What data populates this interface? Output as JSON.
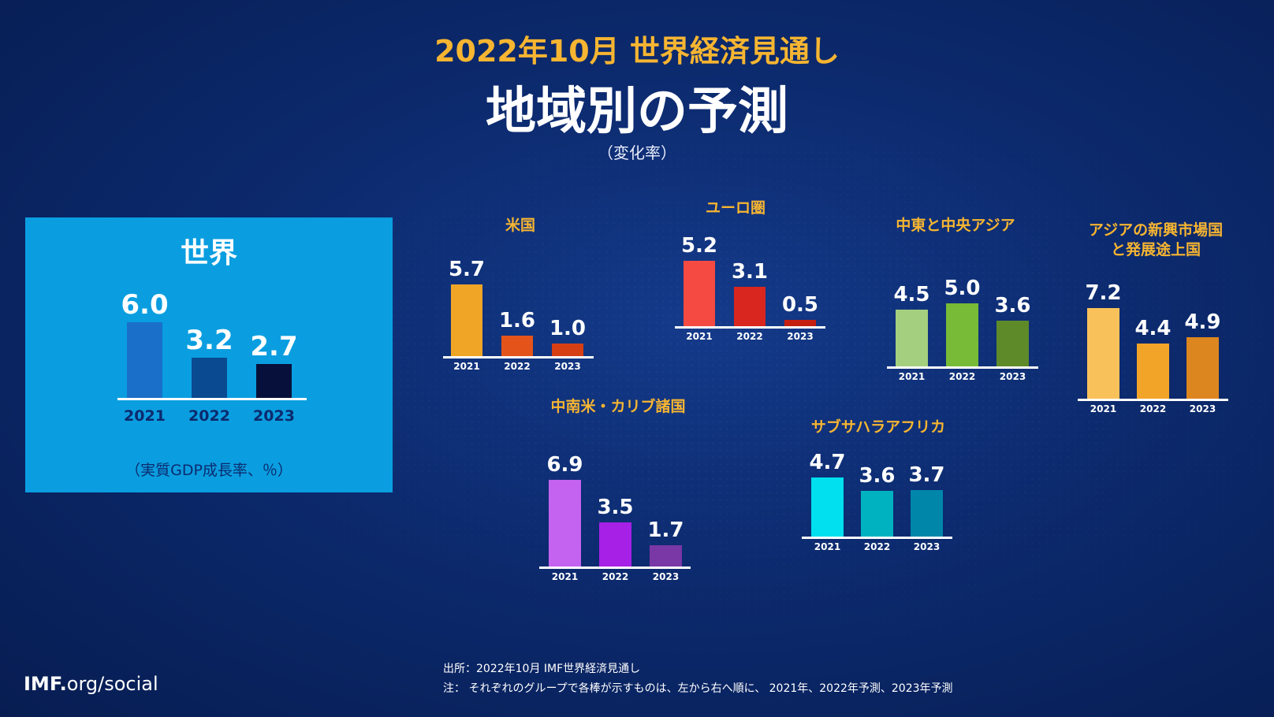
{
  "header": {
    "subtitle": "2022年10月 世界経済見通し",
    "title": "地域別の予測",
    "unit": "（変化率）"
  },
  "world_panel": {
    "title": "世界",
    "note": "（実質GDP成長率、％）"
  },
  "footer": {
    "source": "出所：2022年10月 IMF世界経済見通し",
    "note": "注： それぞれのグループで各棒が示すものは、左から右へ順に、 2021年、2022年予測、2023年予測",
    "logo_bold": "IMF.",
    "logo_rest": "org/social"
  },
  "chart_data": [
    {
      "type": "bar",
      "title": "世界",
      "categories": [
        "2021",
        "2022",
        "2023"
      ],
      "values": [
        6.0,
        3.2,
        2.7
      ],
      "colors": [
        "#1a6fc9",
        "#0a4a90",
        "#07103a"
      ]
    },
    {
      "type": "bar",
      "title": "米国",
      "categories": [
        "2021",
        "2022",
        "2023"
      ],
      "values": [
        5.7,
        1.6,
        1.0
      ],
      "colors": [
        "#f0a526",
        "#e4541a",
        "#d63f14"
      ]
    },
    {
      "type": "bar",
      "title": "ユーロ圏",
      "categories": [
        "2021",
        "2022",
        "2023"
      ],
      "values": [
        5.2,
        3.1,
        0.5
      ],
      "colors": [
        "#f44a42",
        "#d9261f",
        "#c51f12"
      ]
    },
    {
      "type": "bar",
      "title": "中東と中央アジア",
      "categories": [
        "2021",
        "2022",
        "2023"
      ],
      "values": [
        4.5,
        5.0,
        3.6
      ],
      "colors": [
        "#a3cf7e",
        "#77bb37",
        "#5e8a2a"
      ]
    },
    {
      "type": "bar",
      "title": "アジアの新興市場国\nと発展途上国",
      "categories": [
        "2021",
        "2022",
        "2023"
      ],
      "values": [
        7.2,
        4.4,
        4.9
      ],
      "colors": [
        "#f9c15a",
        "#f2a428",
        "#dc8620"
      ]
    },
    {
      "type": "bar",
      "title": "中南米・カリブ諸国",
      "categories": [
        "2021",
        "2022",
        "2023"
      ],
      "values": [
        6.9,
        3.5,
        1.7
      ],
      "colors": [
        "#c463ef",
        "#a620e6",
        "#7a37a6"
      ]
    },
    {
      "type": "bar",
      "title": "サブサハラアフリカ",
      "categories": [
        "2021",
        "2022",
        "2023"
      ],
      "values": [
        4.7,
        3.6,
        3.7
      ],
      "colors": [
        "#00e0ee",
        "#00b2c0",
        "#0086a8"
      ]
    }
  ]
}
